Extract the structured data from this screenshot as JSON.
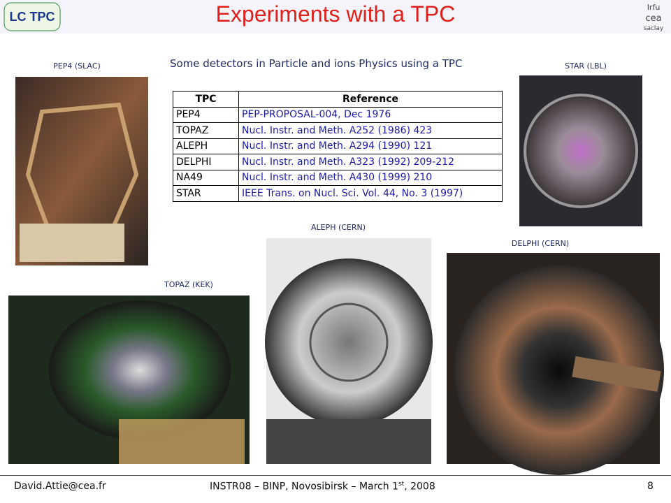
{
  "header": {
    "title": "Experiments with a TPC",
    "logo_left": "LC TPC",
    "logo_right": [
      "Irfu",
      "cea",
      "saclay"
    ]
  },
  "subtitle": "Some detectors in Particle and ions Physics using a TPC",
  "table": {
    "columns": [
      "TPC",
      "Reference"
    ],
    "rows": [
      [
        "PEP4",
        "PEP-PROPOSAL-004, Dec 1976"
      ],
      [
        "TOPAZ",
        "Nucl. Instr. and Meth. A252 (1986) 423"
      ],
      [
        "ALEPH",
        "Nucl. Instr. and Meth. A294 (1990) 121"
      ],
      [
        "DELPHI",
        "Nucl. Instr. and Meth. A323 (1992) 209-212"
      ],
      [
        "NA49",
        "Nucl. Instr. and Meth. A430 (1999) 210"
      ],
      [
        "STAR",
        "IEEE Trans. on Nucl. Sci. Vol. 44, No. 3 (1997)"
      ]
    ]
  },
  "photos": [
    {
      "caption": "PEP4 (SLAC)"
    },
    {
      "caption": "STAR (LBL)"
    },
    {
      "caption": "ALEPH (CERN)"
    },
    {
      "caption": "DELPHI (CERN)"
    },
    {
      "caption": "TOPAZ (KEK)"
    }
  ],
  "footer": {
    "email": "David.Attie@cea.fr",
    "event": "INSTR08 – BINP, Novosibirsk – March 1",
    "event_sup": "st",
    "event_end": ", 2008",
    "page": "8"
  }
}
